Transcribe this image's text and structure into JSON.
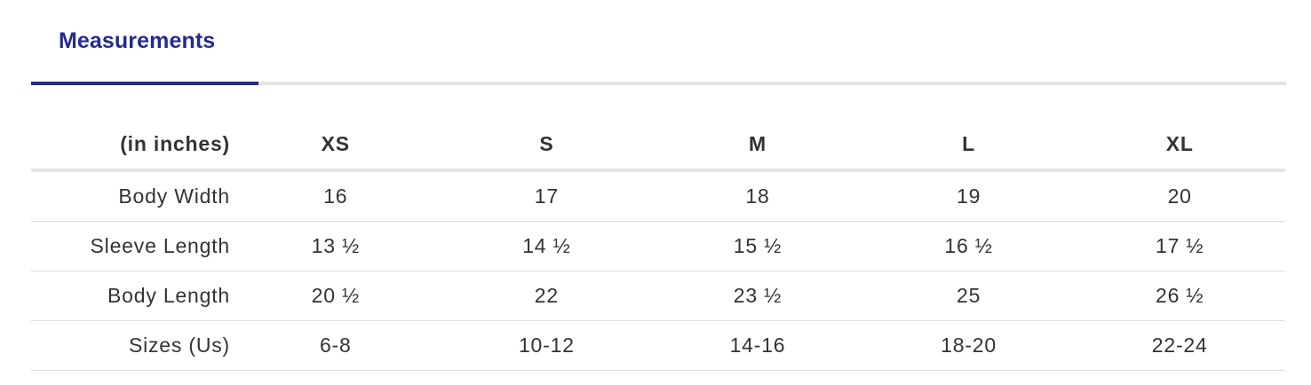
{
  "tabs": [
    {
      "label": "Measurements",
      "active": true
    }
  ],
  "size_chart": {
    "unit_label": "(in inches)",
    "sizes": [
      "XS",
      "S",
      "M",
      "L",
      "XL"
    ],
    "rows": [
      {
        "label": "Body Width",
        "values": [
          "16",
          "17",
          "18",
          "19",
          "20"
        ]
      },
      {
        "label": "Sleeve Length",
        "values": [
          "13 ½",
          "14 ½",
          "15 ½",
          "16 ½",
          "17 ½"
        ]
      },
      {
        "label": "Body Length",
        "values": [
          "20 ½",
          "22",
          "23 ½",
          "25",
          "26 ½"
        ]
      },
      {
        "label": "Sizes (Us)",
        "values": [
          "6-8",
          "10-12",
          "14-16",
          "18-20",
          "22-24"
        ]
      }
    ]
  },
  "colors": {
    "accent": "#262a8c",
    "text": "#333333",
    "divider": "#e4e4e4"
  }
}
